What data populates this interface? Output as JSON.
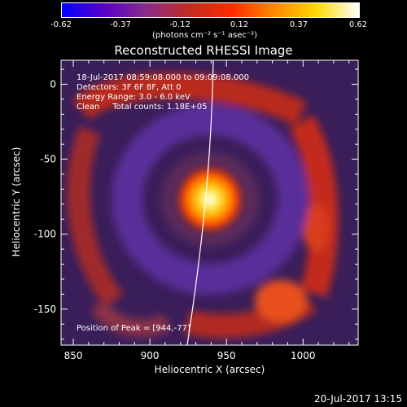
{
  "colorbar": {
    "ticks": [
      "-0.62",
      "-0.37",
      "-0.12",
      "0.12",
      "0.37",
      "0.62"
    ],
    "unit_label": "(photons cm⁻² s⁻¹ asec⁻²)",
    "stops": [
      "#0000ff",
      "#5a00c8",
      "#8a2c8a",
      "#c02c20",
      "#ff2a00",
      "#ff8800",
      "#ffd800",
      "#ffffff"
    ]
  },
  "chart_data": {
    "type": "heatmap",
    "title": "Reconstructed RHESSI Image",
    "xlabel": "Heliocentric X (arcsec)",
    "ylabel": "Heliocentric Y (arcsec)",
    "xlim": [
      842,
      1036
    ],
    "ylim": [
      -174,
      16
    ],
    "x_ticks": [
      850,
      900,
      950,
      1000
    ],
    "y_ticks": [
      0,
      -50,
      -100,
      -150
    ],
    "color_range": [
      -0.62,
      0.62
    ],
    "peak": [
      944,
      -77
    ],
    "annotations": {
      "line1": "18-Jul-2017 08:59:08.000 to 09:09:08.000",
      "line2": "Detectors: 3F 6F 8F, Att 0",
      "line3": "Energy Range: 3.0 - 6.0 keV",
      "line4": "Clean     Total counts: 1.18E+05",
      "peak_text": "Position of Peak = [944,-77]"
    }
  },
  "footer": {
    "timestamp": "20-Jul-2017 13:15"
  }
}
